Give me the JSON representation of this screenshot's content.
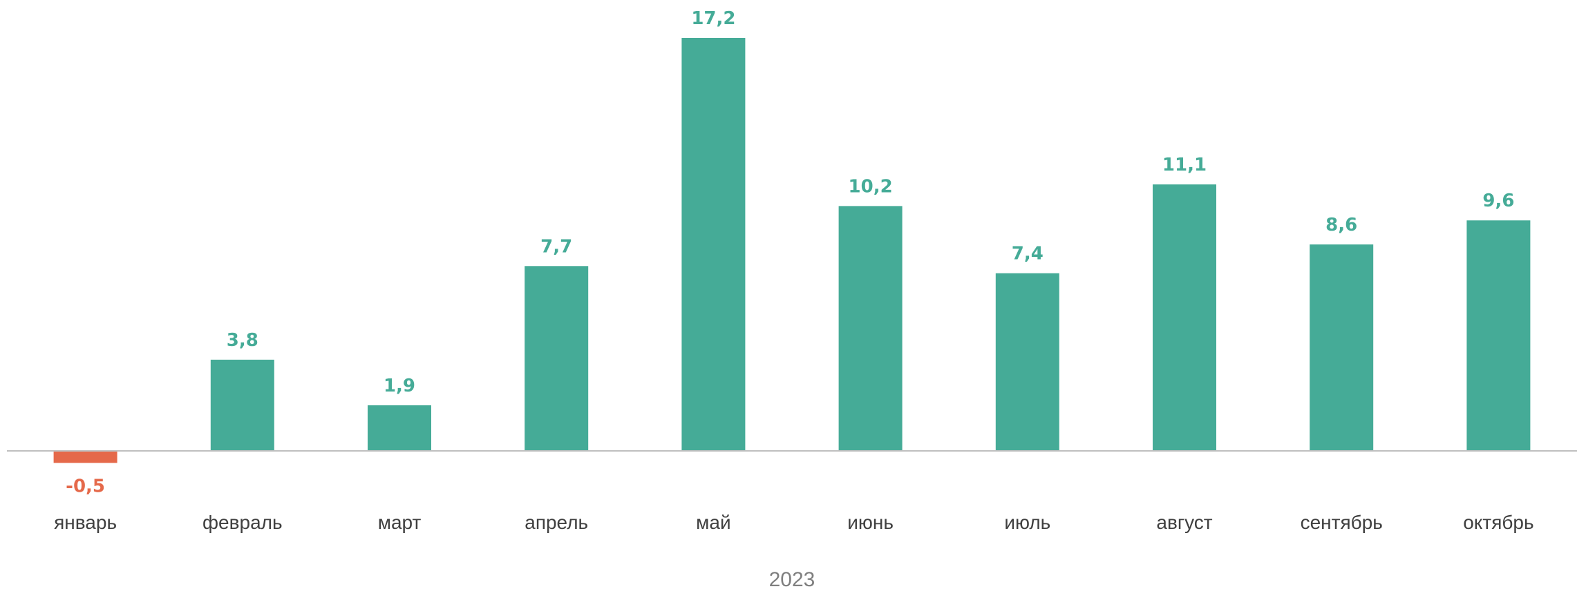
{
  "chart_data": {
    "type": "bar",
    "categories": [
      "январь",
      "февраль",
      "март",
      "апрель",
      "май",
      "июнь",
      "июль",
      "август",
      "сентябрь",
      "октябрь"
    ],
    "values": [
      -0.5,
      3.8,
      1.9,
      7.7,
      17.2,
      10.2,
      7.4,
      11.1,
      8.6,
      9.6
    ],
    "value_labels": [
      "-0,5",
      "3,8",
      "1,9",
      "7,7",
      "17,2",
      "10,2",
      "7,4",
      "11,1",
      "8,6",
      "9,6"
    ],
    "group_label": "2023",
    "title": "",
    "xlabel": "",
    "ylabel": "",
    "grid": false,
    "legend": "none",
    "colors": {
      "positive": "#45AB97",
      "negative": "#E5694A",
      "axis": "#BFBFBF"
    }
  }
}
